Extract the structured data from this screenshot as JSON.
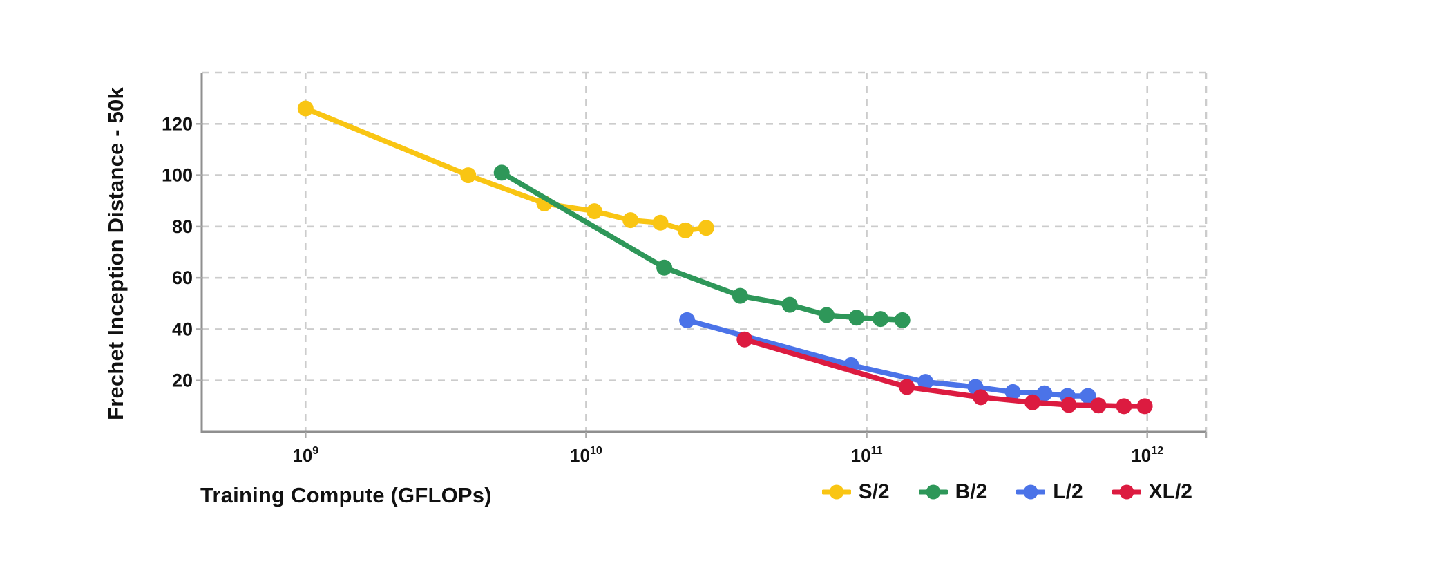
{
  "chart_data": {
    "type": "line",
    "title": "",
    "xlabel": "Training Compute (GFLOPs)",
    "ylabel": "Frechet Inception Distance - 50k",
    "x_scale": "log10",
    "x_range_log10": [
      8.63,
      12.21
    ],
    "y_range": [
      0,
      140
    ],
    "x_ticks": [
      {
        "value": 1000000000.0,
        "base": "10",
        "exponent": "9"
      },
      {
        "value": 10000000000.0,
        "base": "10",
        "exponent": "10"
      },
      {
        "value": 100000000000.0,
        "base": "10",
        "exponent": "11"
      },
      {
        "value": 1000000000000.0,
        "base": "10",
        "exponent": "12"
      }
    ],
    "y_ticks": [
      20,
      40,
      60,
      80,
      100,
      120
    ],
    "y_gridlines": [
      20,
      40,
      60,
      80,
      100,
      120,
      140
    ],
    "grid_style": "dashed",
    "grid_color": "#cccccc",
    "axis_color": "#8f8f8f",
    "tick_color": "#aaaaaa",
    "text_color": "#111111",
    "legend_position": "bottom-right",
    "series": [
      {
        "name": "S/2",
        "color": "#F9C513",
        "points": [
          [
            1000000000.0,
            126
          ],
          [
            3800000000.0,
            100
          ],
          [
            7100000000.0,
            89
          ],
          [
            10700000000.0,
            86
          ],
          [
            14400000000.0,
            82.5
          ],
          [
            18400000000.0,
            81.5
          ],
          [
            22600000000.0,
            78.5
          ],
          [
            26800000000.0,
            79.5
          ]
        ]
      },
      {
        "name": "B/2",
        "color": "#2E9759",
        "points": [
          [
            5000000000.0,
            101
          ],
          [
            19000000000.0,
            64
          ],
          [
            35400000000.0,
            53
          ],
          [
            53200000000.0,
            49.5
          ],
          [
            72000000000.0,
            45.5
          ],
          [
            92000000000.0,
            44.5
          ],
          [
            112000000000.0,
            44
          ],
          [
            134000000000.0,
            43.5
          ]
        ]
      },
      {
        "name": "L/2",
        "color": "#4B73E8",
        "points": [
          [
            22900000000.0,
            43.5
          ],
          [
            88000000000.0,
            26
          ],
          [
            162000000000.0,
            19.5
          ],
          [
            244000000000.0,
            17.5
          ],
          [
            332000000000.0,
            15.5
          ],
          [
            430000000000.0,
            15
          ],
          [
            520000000000.0,
            14
          ],
          [
            615000000000.0,
            14
          ]
        ]
      },
      {
        "name": "XL/2",
        "color": "#DC1B40",
        "points": [
          [
            36700000000.0,
            36
          ],
          [
            139000000000.0,
            17.5
          ],
          [
            255000000000.0,
            13.5
          ],
          [
            390000000000.0,
            11.5
          ],
          [
            525000000000.0,
            10.5
          ],
          [
            670000000000.0,
            10.3
          ],
          [
            826000000000.0,
            10
          ],
          [
            980000000000.0,
            10
          ]
        ]
      }
    ]
  }
}
